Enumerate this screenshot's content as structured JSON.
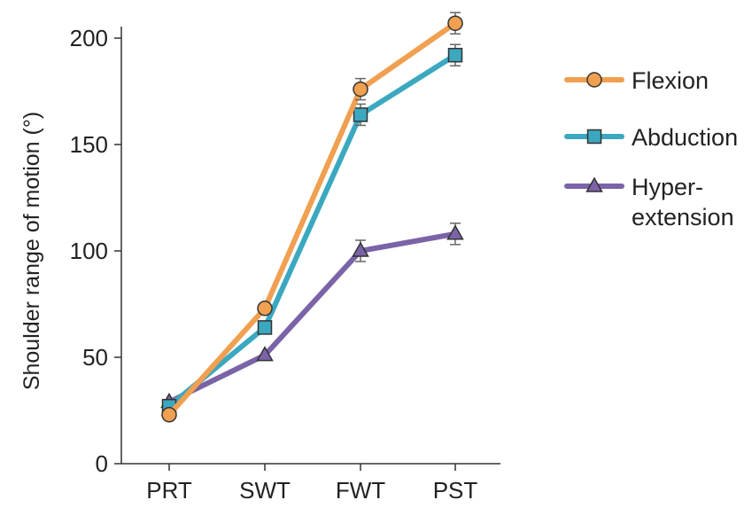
{
  "chart_data": {
    "type": "line",
    "title": "",
    "xlabel": "",
    "ylabel": "Shoulder range of motion (°)",
    "categories": [
      "PRT",
      "SWT",
      "FWT",
      "PST"
    ],
    "ylim": [
      0,
      210
    ],
    "yticks": [
      0,
      50,
      100,
      150,
      200
    ],
    "grid": false,
    "legend_position": "right",
    "series": [
      {
        "name": "Flexion",
        "values": [
          23,
          73,
          176,
          207
        ],
        "errors": [
          0,
          0,
          5,
          5
        ],
        "color": "#F0A050",
        "marker": "circle"
      },
      {
        "name": "Abduction",
        "values": [
          27,
          64,
          164,
          192
        ],
        "errors": [
          0,
          0,
          5,
          5
        ],
        "color": "#3BA8C0",
        "marker": "square"
      },
      {
        "name": "Hyper-extension",
        "legend_lines": [
          "Hyper-",
          "extension"
        ],
        "values": [
          29,
          51,
          100,
          108
        ],
        "errors": [
          0,
          0,
          5,
          5
        ],
        "color": "#7B63A8",
        "marker": "triangle"
      }
    ]
  }
}
